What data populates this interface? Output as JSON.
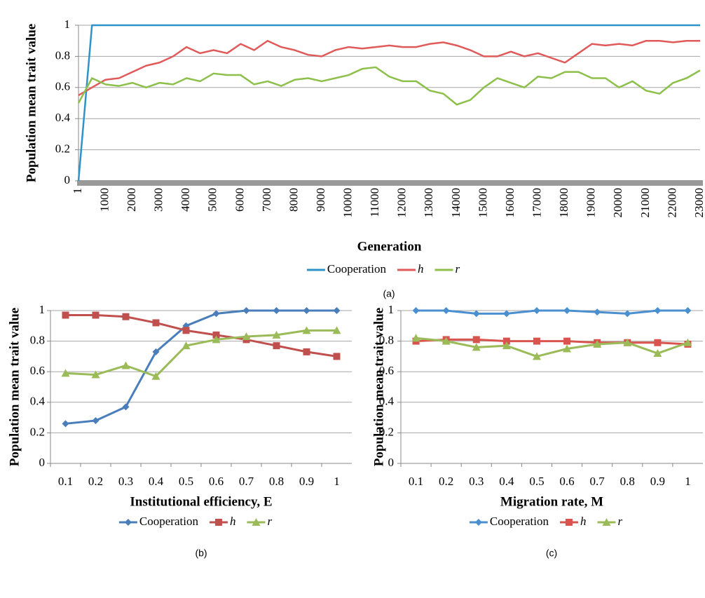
{
  "chart_data": [
    {
      "type": "line",
      "caption": "(a)",
      "x_label": "Generation",
      "y_label": "Population mean trait value",
      "x": [
        1,
        500,
        1000,
        1500,
        2000,
        2500,
        3000,
        3500,
        4000,
        4500,
        5000,
        5500,
        6000,
        6500,
        7000,
        7500,
        8000,
        8500,
        9000,
        9500,
        10000,
        10500,
        11000,
        11500,
        12000,
        12500,
        13000,
        13500,
        14000,
        14500,
        15000,
        15500,
        16000,
        16500,
        17000,
        17500,
        18000,
        18500,
        19000,
        19500,
        20000,
        20500,
        21000,
        21500,
        22000,
        22500,
        23000
      ],
      "xlim": [
        1,
        23000
      ],
      "xticks": [
        1,
        1000,
        2000,
        3000,
        4000,
        5000,
        6000,
        7000,
        8000,
        9000,
        10000,
        11000,
        12000,
        13000,
        14000,
        15000,
        16000,
        17000,
        18000,
        19000,
        20000,
        21000,
        22000,
        23000
      ],
      "ylim": [
        0,
        1
      ],
      "yticks": [
        0,
        0.2,
        0.4,
        0.6,
        0.8,
        1
      ],
      "grid": true,
      "legend": "bottom",
      "series": [
        {
          "name": "Cooperation",
          "color": "#2e93c8",
          "values": [
            0,
            1,
            1,
            1,
            1,
            1,
            1,
            1,
            1,
            1,
            1,
            1,
            1,
            1,
            1,
            1,
            1,
            1,
            1,
            1,
            1,
            1,
            1,
            1,
            1,
            1,
            1,
            1,
            1,
            1,
            1,
            1,
            1,
            1,
            1,
            1,
            1,
            1,
            1,
            1,
            1,
            1,
            1,
            1,
            1,
            1,
            1
          ]
        },
        {
          "name": "h",
          "color": "#e05a5a",
          "values": [
            0.55,
            0.6,
            0.65,
            0.66,
            0.7,
            0.74,
            0.76,
            0.8,
            0.86,
            0.82,
            0.84,
            0.82,
            0.88,
            0.84,
            0.9,
            0.86,
            0.84,
            0.81,
            0.8,
            0.84,
            0.86,
            0.85,
            0.86,
            0.87,
            0.86,
            0.86,
            0.88,
            0.89,
            0.87,
            0.84,
            0.8,
            0.8,
            0.83,
            0.8,
            0.82,
            0.79,
            0.76,
            0.82,
            0.88,
            0.87,
            0.88,
            0.87,
            0.9,
            0.9,
            0.89,
            0.9,
            0.9
          ]
        },
        {
          "name": "r",
          "color": "#8dc04b",
          "values": [
            0.5,
            0.66,
            0.62,
            0.61,
            0.63,
            0.6,
            0.63,
            0.62,
            0.66,
            0.64,
            0.69,
            0.68,
            0.68,
            0.62,
            0.64,
            0.61,
            0.65,
            0.66,
            0.64,
            0.66,
            0.68,
            0.72,
            0.73,
            0.67,
            0.64,
            0.64,
            0.58,
            0.56,
            0.49,
            0.52,
            0.6,
            0.66,
            0.63,
            0.6,
            0.67,
            0.66,
            0.7,
            0.7,
            0.66,
            0.66,
            0.6,
            0.64,
            0.58,
            0.56,
            0.63,
            0.66,
            0.71
          ]
        }
      ]
    },
    {
      "type": "line",
      "caption": "(b)",
      "x_label": "Institutional efficiency, E",
      "y_label": "Population mean trait value",
      "categories": [
        "0.1",
        "0.2",
        "0.3",
        "0.4",
        "0.5",
        "0.6",
        "0.7",
        "0.8",
        "0.9",
        "1"
      ],
      "ylim": [
        0,
        1
      ],
      "yticks": [
        0,
        0.2,
        0.4,
        0.6,
        0.8,
        1
      ],
      "grid": true,
      "legend": "bottom",
      "series": [
        {
          "name": "Cooperation",
          "color": "#4a7ebb",
          "marker": "diamond",
          "values": [
            0.26,
            0.28,
            0.37,
            0.73,
            0.9,
            0.98,
            1,
            1,
            1,
            1
          ]
        },
        {
          "name": "h",
          "color": "#c0504d",
          "marker": "square",
          "values": [
            0.97,
            0.97,
            0.96,
            0.92,
            0.87,
            0.84,
            0.81,
            0.77,
            0.73,
            0.7
          ]
        },
        {
          "name": "r",
          "color": "#9bbb59",
          "marker": "triangle",
          "values": [
            0.59,
            0.58,
            0.64,
            0.57,
            0.77,
            0.81,
            0.83,
            0.84,
            0.87,
            0.87
          ]
        }
      ]
    },
    {
      "type": "line",
      "caption": "(c)",
      "x_label": "Migration rate, M",
      "y_label": "Population mean trait value",
      "categories": [
        "0.1",
        "0.2",
        "0.3",
        "0.4",
        "0.5",
        "0.6",
        "0.7",
        "0.8",
        "0.9",
        "1"
      ],
      "ylim": [
        0,
        1
      ],
      "yticks": [
        0,
        0.2,
        0.4,
        0.6,
        0.8,
        1
      ],
      "grid": true,
      "legend": "bottom",
      "series": [
        {
          "name": "Cooperation",
          "color": "#4a90d0",
          "marker": "diamond",
          "values": [
            1,
            1,
            0.98,
            0.98,
            1,
            1,
            0.99,
            0.98,
            1,
            1
          ]
        },
        {
          "name": "h",
          "color": "#d9534f",
          "marker": "square",
          "values": [
            0.8,
            0.81,
            0.81,
            0.8,
            0.8,
            0.8,
            0.79,
            0.79,
            0.79,
            0.78
          ]
        },
        {
          "name": "r",
          "color": "#9bbb59",
          "marker": "triangle",
          "values": [
            0.82,
            0.8,
            0.76,
            0.77,
            0.7,
            0.75,
            0.78,
            0.79,
            0.72,
            0.79
          ]
        }
      ]
    }
  ]
}
